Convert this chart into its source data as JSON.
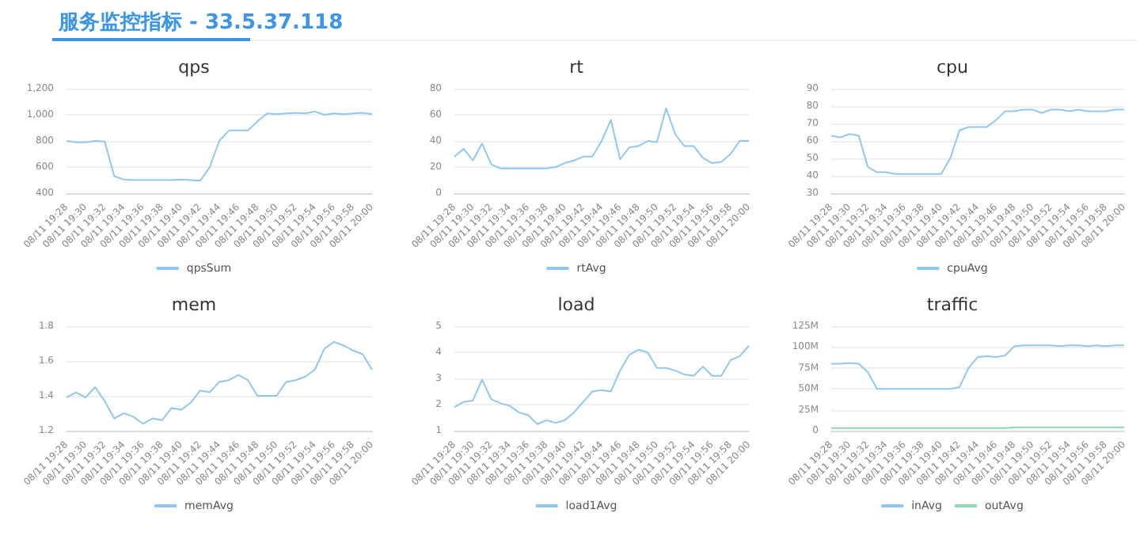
{
  "chart_data": [
    {
      "type": "other",
      "title": "服务监控指标 - 33.5.37.118"
    },
    {
      "type": "line",
      "title": "qps",
      "categories": [
        "08/11 19:28",
        null,
        "08/11 19:30",
        null,
        "08/11 19:32",
        null,
        "08/11 19:34",
        null,
        "08/11 19:36",
        null,
        "08/11 19:38",
        null,
        "08/11 19:40",
        null,
        "08/11 19:42",
        null,
        "08/11 19:44",
        null,
        "08/11 19:46",
        null,
        "08/11 19:48",
        null,
        "08/11 19:50",
        null,
        "08/11 19:52",
        null,
        "08/11 19:54",
        null,
        "08/11 19:56",
        null,
        "08/11 19:58",
        null,
        "08/11 20:00"
      ],
      "series": [
        {
          "name": "qpsSum",
          "color": "#91c7ee",
          "values": [
            800,
            790,
            790,
            800,
            795,
            530,
            505,
            500,
            500,
            500,
            500,
            500,
            505,
            500,
            495,
            600,
            800,
            880,
            880,
            880,
            950,
            1010,
            1005,
            1010,
            1015,
            1010,
            1025,
            1000,
            1010,
            1005,
            1010,
            1015,
            1005
          ]
        }
      ],
      "ylim": [
        400,
        1200
      ],
      "yticks": [
        400,
        600,
        800,
        {
          "value": 1000,
          "label": "1,000"
        },
        {
          "value": 1200,
          "label": "1,200"
        }
      ],
      "grid": "y",
      "legend": "bottom",
      "marker": "none",
      "line_style": "solid"
    },
    {
      "type": "line",
      "title": "rt",
      "categories": [
        "08/11 19:28",
        null,
        "08/11 19:30",
        null,
        "08/11 19:32",
        null,
        "08/11 19:34",
        null,
        "08/11 19:36",
        null,
        "08/11 19:38",
        null,
        "08/11 19:40",
        null,
        "08/11 19:42",
        null,
        "08/11 19:44",
        null,
        "08/11 19:46",
        null,
        "08/11 19:48",
        null,
        "08/11 19:50",
        null,
        "08/11 19:52",
        null,
        "08/11 19:54",
        null,
        "08/11 19:56",
        null,
        "08/11 19:58",
        null,
        "08/11 20:00"
      ],
      "series": [
        {
          "name": "rtAvg",
          "color": "#91c7ee",
          "values": [
            28,
            34,
            25,
            38,
            22,
            19,
            19,
            19,
            19,
            19,
            19,
            20,
            23,
            25,
            28,
            28,
            40,
            56,
            26,
            35,
            36,
            40,
            39,
            65,
            45,
            36,
            36,
            27,
            23,
            24,
            30,
            40,
            40
          ]
        }
      ],
      "ylim": [
        0,
        80
      ],
      "yticks": [
        0,
        20,
        40,
        60,
        80
      ],
      "grid": "y",
      "legend": "bottom",
      "marker": "none",
      "line_style": "solid"
    },
    {
      "type": "line",
      "title": "cpu",
      "categories": [
        "08/11 19:28",
        null,
        "08/11 19:30",
        null,
        "08/11 19:32",
        null,
        "08/11 19:34",
        null,
        "08/11 19:36",
        null,
        "08/11 19:38",
        null,
        "08/11 19:40",
        null,
        "08/11 19:42",
        null,
        "08/11 19:44",
        null,
        "08/11 19:46",
        null,
        "08/11 19:48",
        null,
        "08/11 19:50",
        null,
        "08/11 19:52",
        null,
        "08/11 19:54",
        null,
        "08/11 19:56",
        null,
        "08/11 19:58",
        null,
        "08/11 20:00"
      ],
      "series": [
        {
          "name": "cpuAvg",
          "color": "#91c7ee",
          "values": [
            63,
            62,
            64,
            63,
            45,
            42,
            42,
            41,
            41,
            41,
            41,
            41,
            41,
            50,
            66,
            68,
            68,
            68,
            72,
            77,
            77,
            78,
            78,
            76,
            78,
            78,
            77,
            78,
            77,
            77,
            77,
            78,
            78
          ]
        }
      ],
      "ylim": [
        30,
        90
      ],
      "yticks": [
        30,
        40,
        50,
        60,
        70,
        80,
        90
      ],
      "grid": "y",
      "legend": "bottom",
      "marker": "none",
      "line_style": "solid"
    },
    {
      "type": "line",
      "title": "mem",
      "categories": [
        "08/11 19:28",
        null,
        "08/11 19:30",
        null,
        "08/11 19:32",
        null,
        "08/11 19:34",
        null,
        "08/11 19:36",
        null,
        "08/11 19:38",
        null,
        "08/11 19:40",
        null,
        "08/11 19:42",
        null,
        "08/11 19:44",
        null,
        "08/11 19:46",
        null,
        "08/11 19:48",
        null,
        "08/11 19:50",
        null,
        "08/11 19:52",
        null,
        "08/11 19:54",
        null,
        "08/11 19:56",
        null,
        "08/11 19:58",
        null,
        "08/11 20:00"
      ],
      "series": [
        {
          "name": "memAvg",
          "color": "#91c7ee",
          "values": [
            1.39,
            1.42,
            1.39,
            1.45,
            1.37,
            1.27,
            1.3,
            1.28,
            1.24,
            1.27,
            1.26,
            1.33,
            1.32,
            1.36,
            1.43,
            1.42,
            1.48,
            1.49,
            1.52,
            1.49,
            1.4,
            1.4,
            1.4,
            1.48,
            1.49,
            1.51,
            1.55,
            1.67,
            1.71,
            1.69,
            1.66,
            1.64,
            1.55
          ]
        }
      ],
      "ylim": [
        1.2,
        1.8
      ],
      "yticks": [
        1.2,
        1.4,
        1.6,
        1.8
      ],
      "grid": "y",
      "legend": "bottom",
      "marker": "none",
      "line_style": "solid"
    },
    {
      "type": "line",
      "title": "load",
      "categories": [
        "08/11 19:28",
        null,
        "08/11 19:30",
        null,
        "08/11 19:32",
        null,
        "08/11 19:34",
        null,
        "08/11 19:36",
        null,
        "08/11 19:38",
        null,
        "08/11 19:40",
        null,
        "08/11 19:42",
        null,
        "08/11 19:44",
        null,
        "08/11 19:46",
        null,
        "08/11 19:48",
        null,
        "08/11 19:50",
        null,
        "08/11 19:52",
        null,
        "08/11 19:54",
        null,
        "08/11 19:56",
        null,
        "08/11 19:58",
        null,
        "08/11 20:00"
      ],
      "series": [
        {
          "name": "load1Avg",
          "color": "#91c7ee",
          "values": [
            1.9,
            2.1,
            2.15,
            2.95,
            2.2,
            2.05,
            1.95,
            1.7,
            1.6,
            1.25,
            1.4,
            1.3,
            1.4,
            1.7,
            2.1,
            2.5,
            2.55,
            2.5,
            3.3,
            3.9,
            4.1,
            4.0,
            3.4,
            3.4,
            3.3,
            3.15,
            3.1,
            3.45,
            3.1,
            3.1,
            3.7,
            3.85,
            4.25
          ]
        }
      ],
      "ylim": [
        1,
        5
      ],
      "yticks": [
        1,
        2,
        3,
        4,
        5
      ],
      "grid": "y",
      "legend": "bottom",
      "marker": "none",
      "line_style": "solid"
    },
    {
      "type": "line",
      "title": "traffic",
      "categories": [
        "08/11 19:28",
        null,
        "08/11 19:30",
        null,
        "08/11 19:32",
        null,
        "08/11 19:34",
        null,
        "08/11 19:36",
        null,
        "08/11 19:38",
        null,
        "08/11 19:40",
        null,
        "08/11 19:42",
        null,
        "08/11 19:44",
        null,
        "08/11 19:46",
        null,
        "08/11 19:48",
        null,
        "08/11 19:50",
        null,
        "08/11 19:52",
        null,
        "08/11 19:54",
        null,
        "08/11 19:56",
        null,
        "08/11 19:58",
        null,
        "08/11 20:00"
      ],
      "series": [
        {
          "name": "inAvg",
          "color": "#91c7ee",
          "values": [
            80,
            80,
            81,
            80,
            70,
            50,
            50,
            50,
            50,
            50,
            50,
            50,
            50,
            50,
            52,
            75,
            88,
            89,
            88,
            90,
            101,
            102,
            102,
            102,
            102,
            101,
            102,
            102,
            101,
            102,
            101,
            102,
            102
          ]
        },
        {
          "name": "outAvg",
          "color": "#8fd6b4",
          "values": [
            3,
            3,
            3,
            3,
            3,
            3,
            3,
            3,
            3,
            3,
            3,
            3,
            3,
            3,
            3,
            3,
            3,
            3,
            3,
            3,
            4,
            4,
            4,
            4,
            4,
            4,
            4,
            4,
            4,
            4,
            4,
            4,
            4
          ]
        }
      ],
      "ylim": [
        0,
        125
      ],
      "yticks": [
        0,
        {
          "value": 25,
          "label": "25M"
        },
        {
          "value": 50,
          "label": "50M"
        },
        {
          "value": 75,
          "label": "75M"
        },
        {
          "value": 100,
          "label": "100M"
        },
        {
          "value": 125,
          "label": "125M"
        }
      ],
      "grid": "y",
      "legend": "bottom",
      "marker": "none",
      "line_style": "solid"
    }
  ]
}
